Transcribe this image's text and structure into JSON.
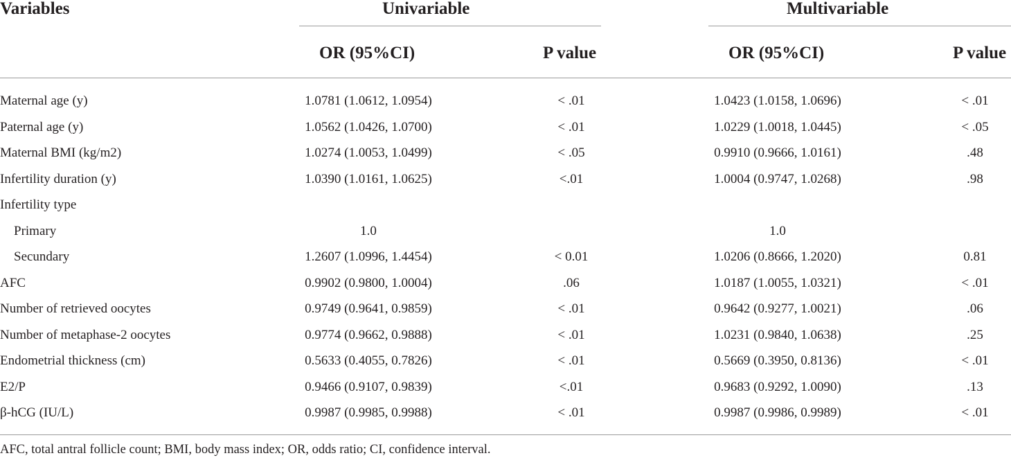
{
  "table": {
    "header": {
      "variables": "Variables",
      "univariable": "Univariable",
      "multivariable": "Multivariable",
      "or_ci": "OR (95%CI)",
      "p_value": "P value"
    },
    "rows": [
      {
        "label": "Maternal age (y)",
        "indent": false,
        "uni_or": "1.0781 (1.0612, 1.0954)",
        "uni_p": "< .01",
        "mul_or": "1.0423 (1.0158, 1.0696)",
        "mul_p": "< .01"
      },
      {
        "label": "Paternal age (y)",
        "indent": false,
        "uni_or": "1.0562 (1.0426, 1.0700)",
        "uni_p": "< .01",
        "mul_or": "1.0229 (1.0018, 1.0445)",
        "mul_p": "< .05"
      },
      {
        "label": "Maternal BMI (kg/m2)",
        "indent": false,
        "uni_or": "1.0274 (1.0053, 1.0499)",
        "uni_p": "< .05",
        "mul_or": "0.9910 (0.9666, 1.0161)",
        "mul_p": ".48"
      },
      {
        "label": "Infertility duration (y)",
        "indent": false,
        "uni_or": "1.0390 (1.0161, 1.0625)",
        "uni_p": "<.01",
        "mul_or": "1.0004 (0.9747, 1.0268)",
        "mul_p": ".98"
      },
      {
        "label": "Infertility type",
        "indent": false,
        "uni_or": "",
        "uni_p": "",
        "mul_or": "",
        "mul_p": ""
      },
      {
        "label": "Primary",
        "indent": true,
        "uni_or": "1.0",
        "uni_p": "",
        "mul_or": "1.0",
        "mul_p": ""
      },
      {
        "label": "Secundary",
        "indent": true,
        "uni_or": "1.2607 (1.0996, 1.4454)",
        "uni_p": "< 0.01",
        "mul_or": "1.0206 (0.8666, 1.2020)",
        "mul_p": "0.81"
      },
      {
        "label": "AFC",
        "indent": false,
        "uni_or": "0.9902 (0.9800, 1.0004)",
        "uni_p": ".06",
        "mul_or": "1.0187 (1.0055, 1.0321)",
        "mul_p": "< .01"
      },
      {
        "label": "Number of retrieved oocytes",
        "indent": false,
        "uni_or": "0.9749 (0.9641, 0.9859)",
        "uni_p": "< .01",
        "mul_or": "0.9642 (0.9277, 1.0021)",
        "mul_p": ".06"
      },
      {
        "label": "Number of metaphase-2 oocytes",
        "indent": false,
        "uni_or": "0.9774 (0.9662, 0.9888)",
        "uni_p": "< .01",
        "mul_or": "1.0231 (0.9840, 1.0638)",
        "mul_p": ".25"
      },
      {
        "label": "Endometrial thickness (cm)",
        "indent": false,
        "uni_or": "0.5633 (0.4055, 0.7826)",
        "uni_p": "< .01",
        "mul_or": "0.5669 (0.3950, 0.8136)",
        "mul_p": "< .01"
      },
      {
        "label": "E2/P",
        "indent": false,
        "uni_or": "0.9466 (0.9107, 0.9839)",
        "uni_p": "<.01",
        "mul_or": "0.9683 (0.9292, 1.0090)",
        "mul_p": ".13"
      },
      {
        "label": "β-hCG (IU/L)",
        "indent": false,
        "uni_or": "0.9987 (0.9985, 0.9988)",
        "uni_p": "< .01",
        "mul_or": "0.9987 (0.9986, 0.9989)",
        "mul_p": "< .01"
      }
    ],
    "footnote": "AFC, total antral follicle count; BMI, body mass index; OR, odds ratio; CI, confidence interval."
  }
}
